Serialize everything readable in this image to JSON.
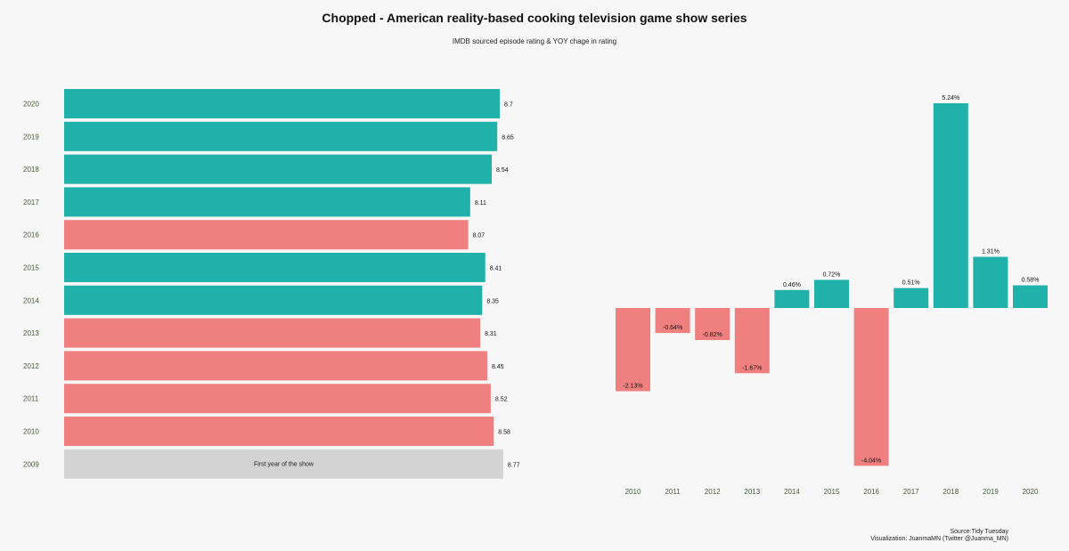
{
  "title": "Chopped - American reality-based cooking television game show series",
  "subtitle": "IMDB sourced episode rating  & YOY chage in rating",
  "colors": {
    "up": "#20b2aa",
    "down": "#f08080",
    "neutral": "#d3d3d3",
    "background": "#f7f7f7"
  },
  "chart_data": [
    {
      "type": "bar",
      "orientation": "horizontal",
      "categories": [
        "2009",
        "2010",
        "2011",
        "2012",
        "2013",
        "2014",
        "2015",
        "2016",
        "2017",
        "2018",
        "2019",
        "2020"
      ],
      "values": [
        8.77,
        8.58,
        8.52,
        8.45,
        8.31,
        8.35,
        8.41,
        8.07,
        8.11,
        8.54,
        8.65,
        8.7
      ],
      "value_labels": [
        "8.77",
        "8.58",
        "8.52",
        "8.45",
        "8.31",
        "8.35",
        "8.41",
        "8.07",
        "8.11",
        "8.54",
        "8.65",
        "8.7"
      ],
      "bar_colors": [
        "neutral",
        "down",
        "down",
        "down",
        "down",
        "up",
        "up",
        "down",
        "up",
        "up",
        "up",
        "up"
      ],
      "annotations": [
        {
          "category": "2009",
          "text": "First year of the show"
        }
      ]
    },
    {
      "type": "bar",
      "orientation": "vertical",
      "categories": [
        "2010",
        "2011",
        "2012",
        "2013",
        "2014",
        "2015",
        "2016",
        "2017",
        "2018",
        "2019",
        "2020"
      ],
      "values": [
        -2.13,
        -0.64,
        -0.82,
        -1.67,
        0.46,
        0.72,
        -4.04,
        0.51,
        5.24,
        1.31,
        0.58
      ],
      "value_labels": [
        "-2.13%",
        "-0.64%",
        "-0.82%",
        "-1.67%",
        "0.46%",
        "0.72%",
        "-4.04%",
        "0.51%",
        "5.24%",
        "1.31%",
        "0.58%"
      ],
      "ylim": [
        -4.04,
        5.24
      ]
    }
  ],
  "caption": {
    "line1": "Source:Tidy Tuesday",
    "line2": "Visualization: JuanmaMN (Twitter @Juanma_MN)"
  }
}
